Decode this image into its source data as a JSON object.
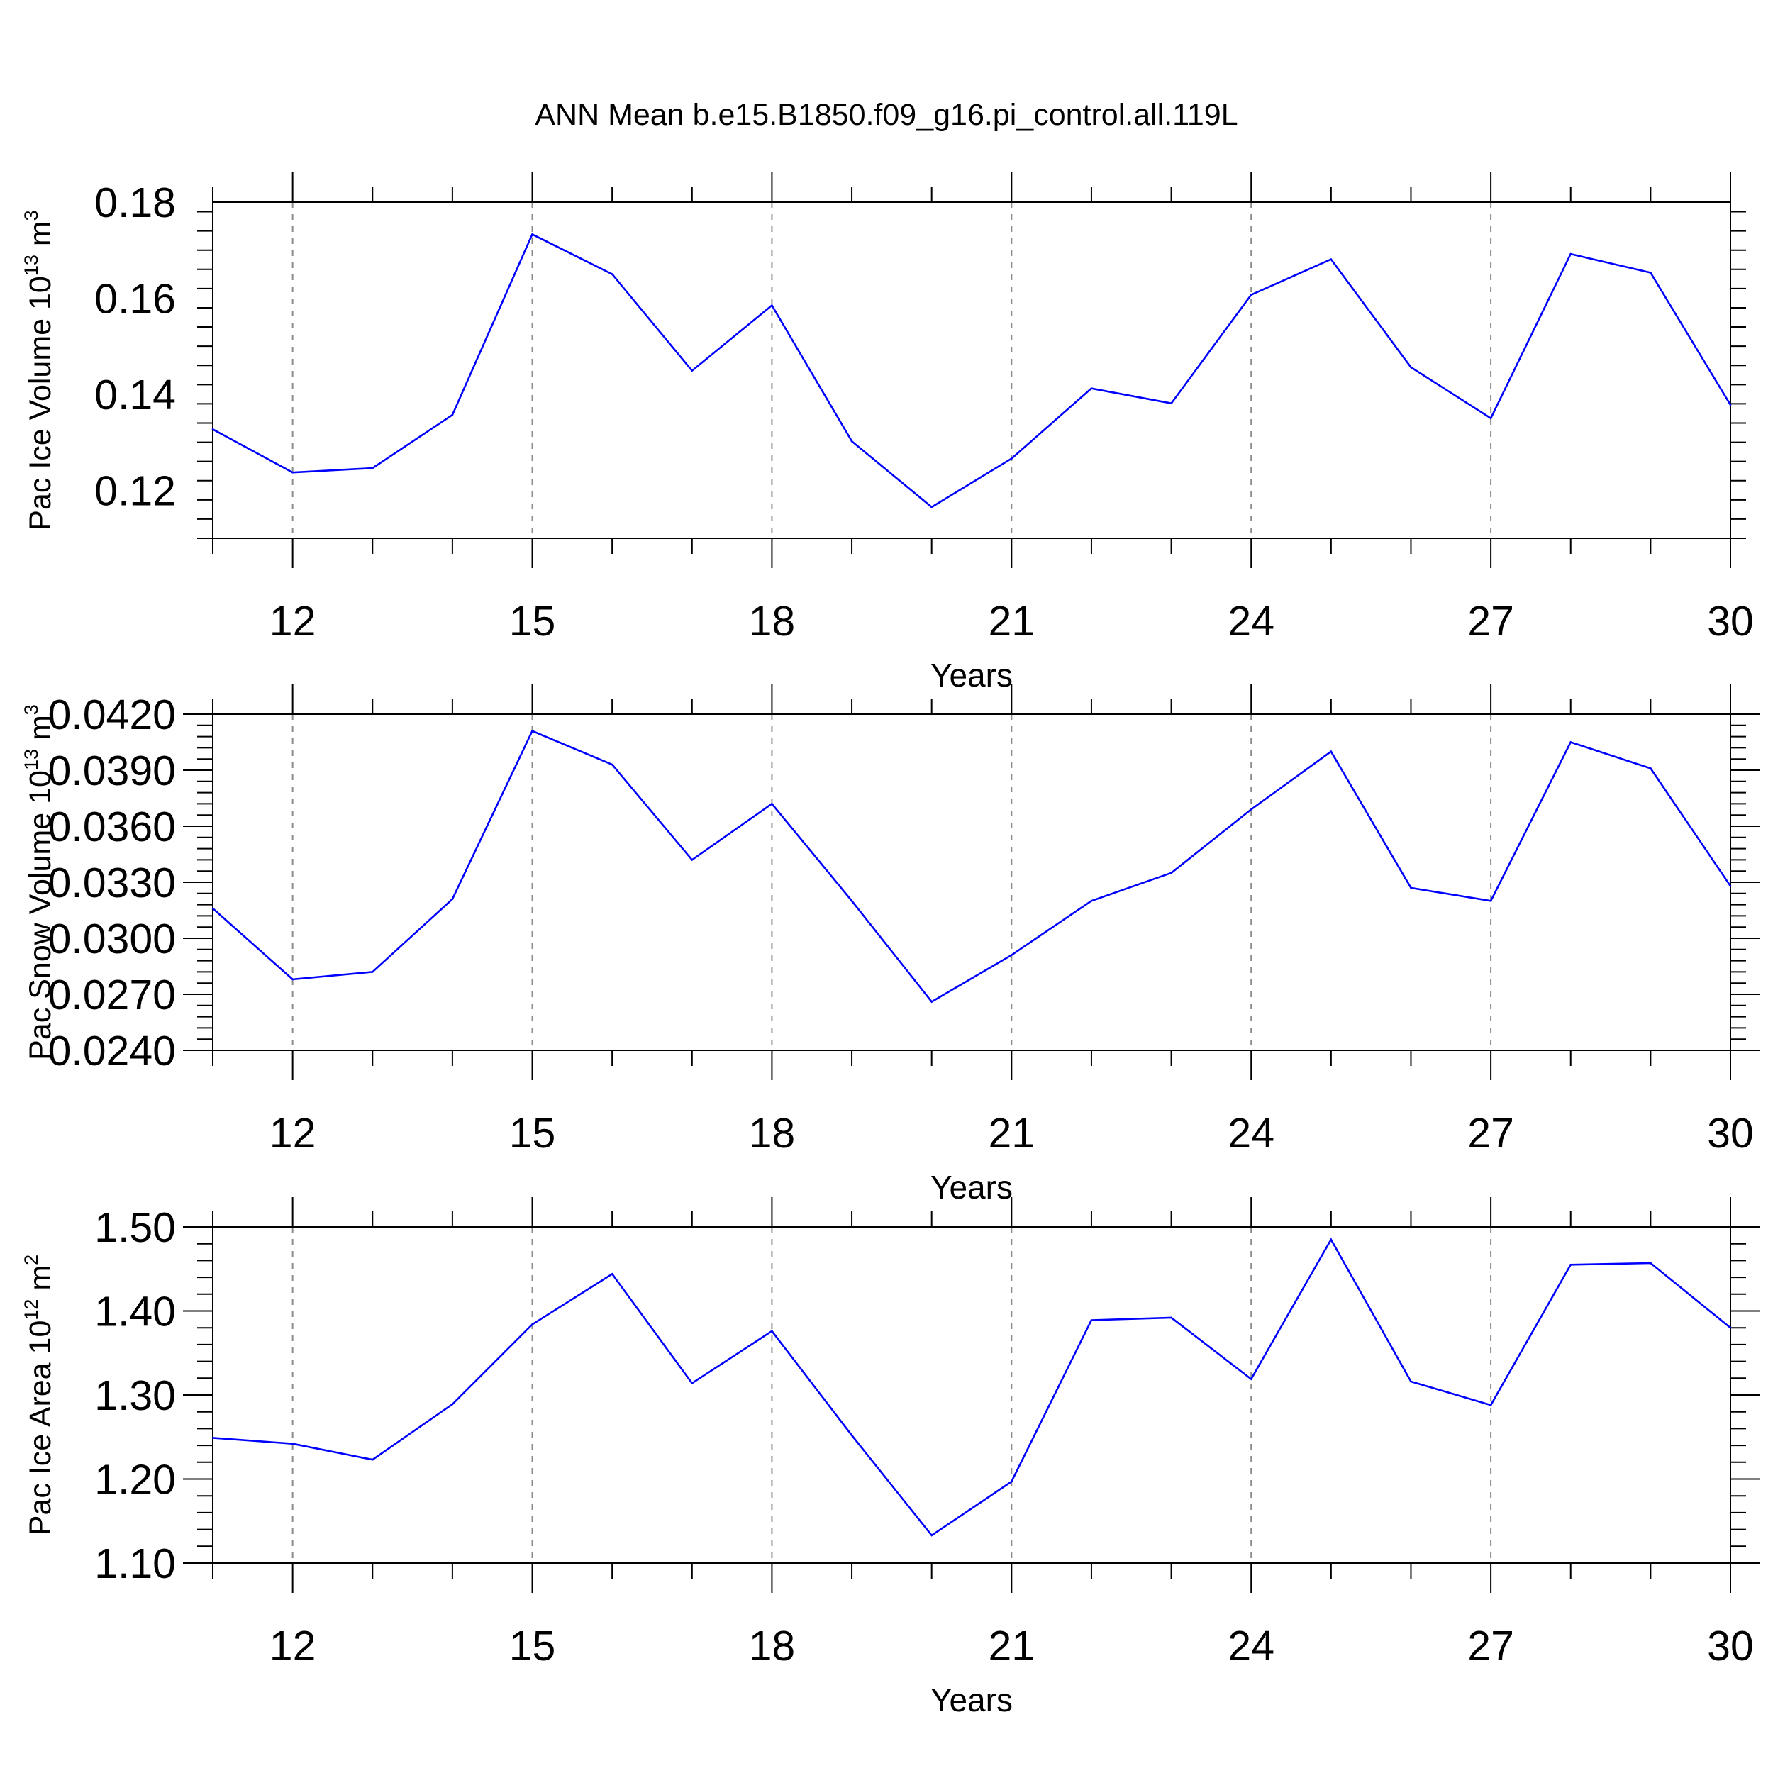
{
  "title": "ANN Mean b.e15.B1850.f09_g16.pi_control.all.119L",
  "colors": {
    "line": "#0000ff",
    "axis": "#000000",
    "grid": "#8c8c8c"
  },
  "chart_data": [
    {
      "type": "line",
      "xlabel": "Years",
      "ylabel": {
        "prefix": "Pac Ice Volume 10",
        "exp": "13",
        "unit": " m",
        "unit_exp": "3"
      },
      "xlim": [
        11,
        30
      ],
      "ylim": [
        0.11,
        0.18
      ],
      "x_ticks": [
        "12",
        "15",
        "18",
        "21",
        "24",
        "27",
        "30"
      ],
      "y_ticks": [
        "0.12",
        "0.14",
        "0.16",
        "0.18"
      ],
      "grid": "vertical dashed",
      "series": [
        {
          "x": [
            11,
            12,
            13,
            14,
            15,
            16,
            17,
            18,
            19,
            20,
            21,
            22,
            23,
            24,
            25,
            26,
            27,
            28,
            29,
            30
          ],
          "values": [
            0.1327,
            0.1237,
            0.1246,
            0.1357,
            0.1733,
            0.165,
            0.1449,
            0.1585,
            0.1302,
            0.1165,
            0.1266,
            0.1412,
            0.1381,
            0.1607,
            0.1681,
            0.1456,
            0.135,
            0.1692,
            0.1653,
            0.1378
          ]
        }
      ]
    },
    {
      "type": "line",
      "xlabel": "Years",
      "ylabel": {
        "prefix": "Pac Snow Volume 10",
        "exp": "13",
        "unit": " m",
        "unit_exp": "3"
      },
      "xlim": [
        11,
        30
      ],
      "ylim": [
        0.024,
        0.042
      ],
      "x_ticks": [
        "12",
        "15",
        "18",
        "21",
        "24",
        "27",
        "30"
      ],
      "y_ticks": [
        "0.0240",
        "0.0270",
        "0.0300",
        "0.0330",
        "0.0360",
        "0.0390",
        "0.0420"
      ],
      "grid": "vertical dashed",
      "series": [
        {
          "x": [
            11,
            12,
            13,
            14,
            15,
            16,
            17,
            18,
            19,
            20,
            21,
            22,
            23,
            24,
            25,
            26,
            27,
            28,
            29,
            30
          ],
          "values": [
            0.0316,
            0.0278,
            0.0282,
            0.0321,
            0.0411,
            0.0393,
            0.0342,
            0.0372,
            0.032,
            0.0266,
            0.0291,
            0.032,
            0.0335,
            0.0369,
            0.04,
            0.0327,
            0.032,
            0.0405,
            0.0391,
            0.0328
          ]
        }
      ]
    },
    {
      "type": "line",
      "xlabel": "Years",
      "ylabel": {
        "prefix": "Pac Ice Area 10",
        "exp": "12",
        "unit": " m",
        "unit_exp": "2"
      },
      "xlim": [
        11,
        30
      ],
      "ylim": [
        1.1,
        1.5
      ],
      "x_ticks": [
        "12",
        "15",
        "18",
        "21",
        "24",
        "27",
        "30"
      ],
      "y_ticks": [
        "1.10",
        "1.20",
        "1.30",
        "1.40",
        "1.50"
      ],
      "grid": "vertical dashed",
      "series": [
        {
          "x": [
            11,
            12,
            13,
            14,
            15,
            16,
            17,
            18,
            19,
            20,
            21,
            22,
            23,
            24,
            25,
            26,
            27,
            28,
            29,
            30
          ],
          "values": [
            1.249,
            1.242,
            1.223,
            1.289,
            1.384,
            1.444,
            1.314,
            1.376,
            1.252,
            1.133,
            1.197,
            1.389,
            1.392,
            1.319,
            1.485,
            1.316,
            1.288,
            1.455,
            1.457,
            1.38
          ]
        }
      ]
    }
  ]
}
